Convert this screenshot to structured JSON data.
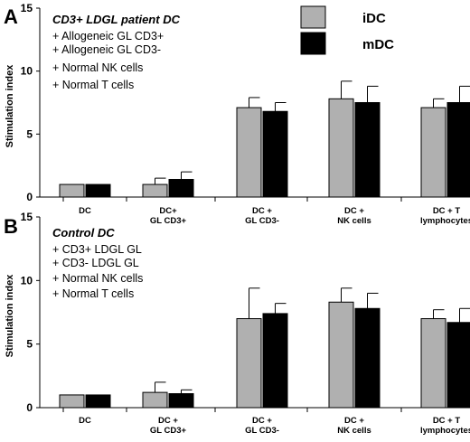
{
  "legend": {
    "items": [
      {
        "label": "iDC",
        "color": "#b0b0b0"
      },
      {
        "label": "mDC",
        "color": "#000000"
      }
    ],
    "position": "top-right"
  },
  "chart_data": [
    {
      "type": "bar",
      "panel_label": "A",
      "title": "CD3+ LDGL patient DC",
      "annotations": [
        "+ Allogeneic GL CD3+",
        "+ Allogeneic GL CD3-",
        "+ Normal NK cells",
        "+  Normal T cells"
      ],
      "ylabel": "Stimulation index",
      "ylim": [
        0,
        15
      ],
      "yticks": [
        0,
        5,
        10,
        15
      ],
      "categories": [
        [
          "DC"
        ],
        [
          "DC+",
          "GL CD3+"
        ],
        [
          "DC +",
          "GL CD3-"
        ],
        [
          "DC +",
          "NK cells"
        ],
        [
          "DC + T",
          "lymphocytes"
        ]
      ],
      "series": [
        {
          "name": "iDC",
          "color": "#b0b0b0",
          "values": [
            1.0,
            1.0,
            7.1,
            7.8,
            7.1
          ],
          "errors": [
            0.0,
            0.5,
            0.8,
            1.4,
            0.7
          ]
        },
        {
          "name": "mDC",
          "color": "#000000",
          "values": [
            1.0,
            1.4,
            6.8,
            7.5,
            7.5
          ],
          "errors": [
            0.0,
            0.6,
            0.7,
            1.3,
            1.3
          ]
        }
      ]
    },
    {
      "type": "bar",
      "panel_label": "B",
      "title": "Control DC",
      "annotations": [
        "+ CD3+ LDGL GL",
        "+ CD3- LDGL GL",
        "+ Normal NK cells",
        "+ Normal T cells"
      ],
      "ylabel": "Stimulation index",
      "ylim": [
        0,
        15
      ],
      "yticks": [
        0,
        5,
        10,
        15
      ],
      "categories": [
        [
          "DC"
        ],
        [
          "DC +",
          "GL CD3+"
        ],
        [
          "DC +",
          "GL CD3-"
        ],
        [
          "DC +",
          "NK cells"
        ],
        [
          "DC +  T",
          "lymphocytes"
        ]
      ],
      "series": [
        {
          "name": "iDC",
          "color": "#b0b0b0",
          "values": [
            1.0,
            1.2,
            7.0,
            8.3,
            7.0
          ],
          "errors": [
            0.0,
            0.8,
            2.4,
            1.1,
            0.7
          ]
        },
        {
          "name": "mDC",
          "color": "#000000",
          "values": [
            1.0,
            1.1,
            7.4,
            7.8,
            6.7
          ],
          "errors": [
            0.0,
            0.3,
            0.8,
            1.2,
            1.1
          ]
        }
      ]
    }
  ]
}
